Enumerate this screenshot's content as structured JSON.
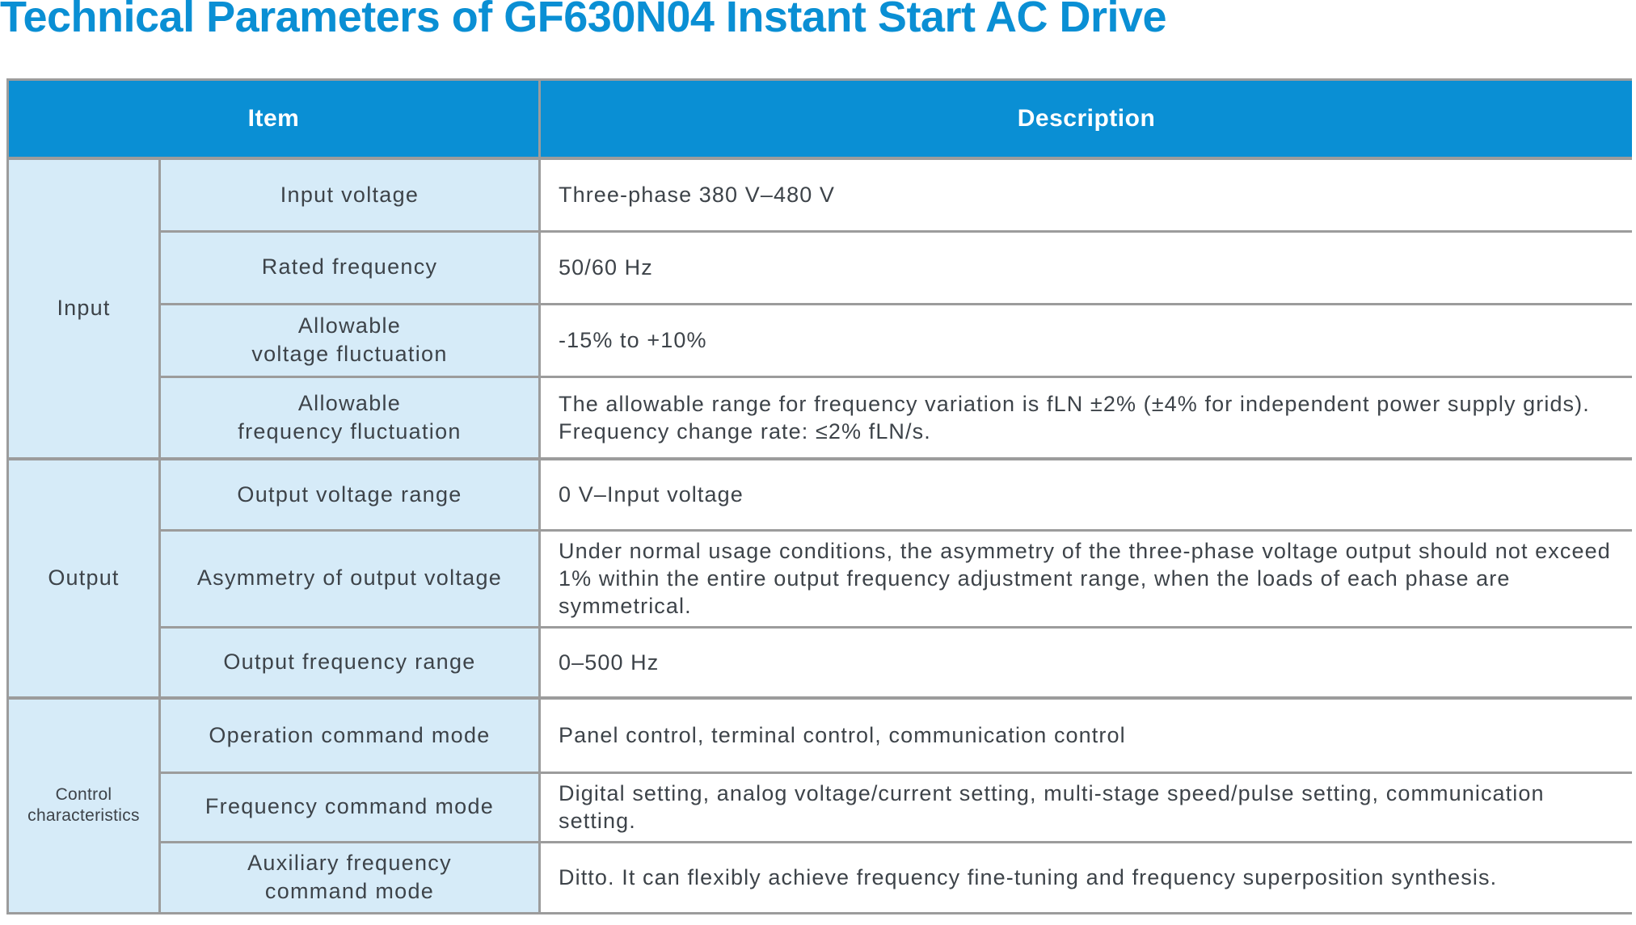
{
  "title": "Technical Parameters of GF630N04 Instant Start AC Drive",
  "colors": {
    "accent_blue": "#0a8fd4",
    "cell_light_blue": "#d6ebf8",
    "border_gray": "#9c9c9c",
    "body_text": "#3d4349",
    "header_text": "#ffffff"
  },
  "table": {
    "headers": {
      "item": "Item",
      "description": "Description"
    },
    "groups": [
      {
        "category": "Input",
        "rows": [
          {
            "param": "Input voltage",
            "desc": "Three-phase 380 V–480 V"
          },
          {
            "param": "Rated frequency",
            "desc": "50/60 Hz"
          },
          {
            "param": "Allowable\nvoltage fluctuation",
            "desc": "-15% to +10%"
          },
          {
            "param": "Allowable\nfrequency fluctuation",
            "desc": "The allowable range for frequency variation is fLN ±2% (±4% for independent power supply grids). Frequency change rate: ≤2% fLN/s."
          }
        ]
      },
      {
        "category": "Output",
        "rows": [
          {
            "param": "Output voltage range",
            "desc": "0 V–Input voltage"
          },
          {
            "param": "Asymmetry of output voltage",
            "desc": "Under normal usage conditions, the asymmetry of the three-phase voltage output should not exceed 1% within the entire output frequency adjustment range, when the loads of each phase are symmetrical."
          },
          {
            "param": "Output frequency range",
            "desc": "0–500 Hz"
          }
        ]
      },
      {
        "category": "Control\ncharacteristics",
        "rows": [
          {
            "param": "Operation command mode",
            "desc": "Panel control, terminal control, communication control"
          },
          {
            "param": "Frequency command mode",
            "desc": "Digital setting, analog voltage/current setting, multi-stage speed/pulse setting, communication setting."
          },
          {
            "param": "Auxiliary frequency\ncommand mode",
            "desc": "Ditto. It can flexibly achieve frequency fine-tuning and frequency superposition synthesis."
          }
        ]
      }
    ]
  }
}
